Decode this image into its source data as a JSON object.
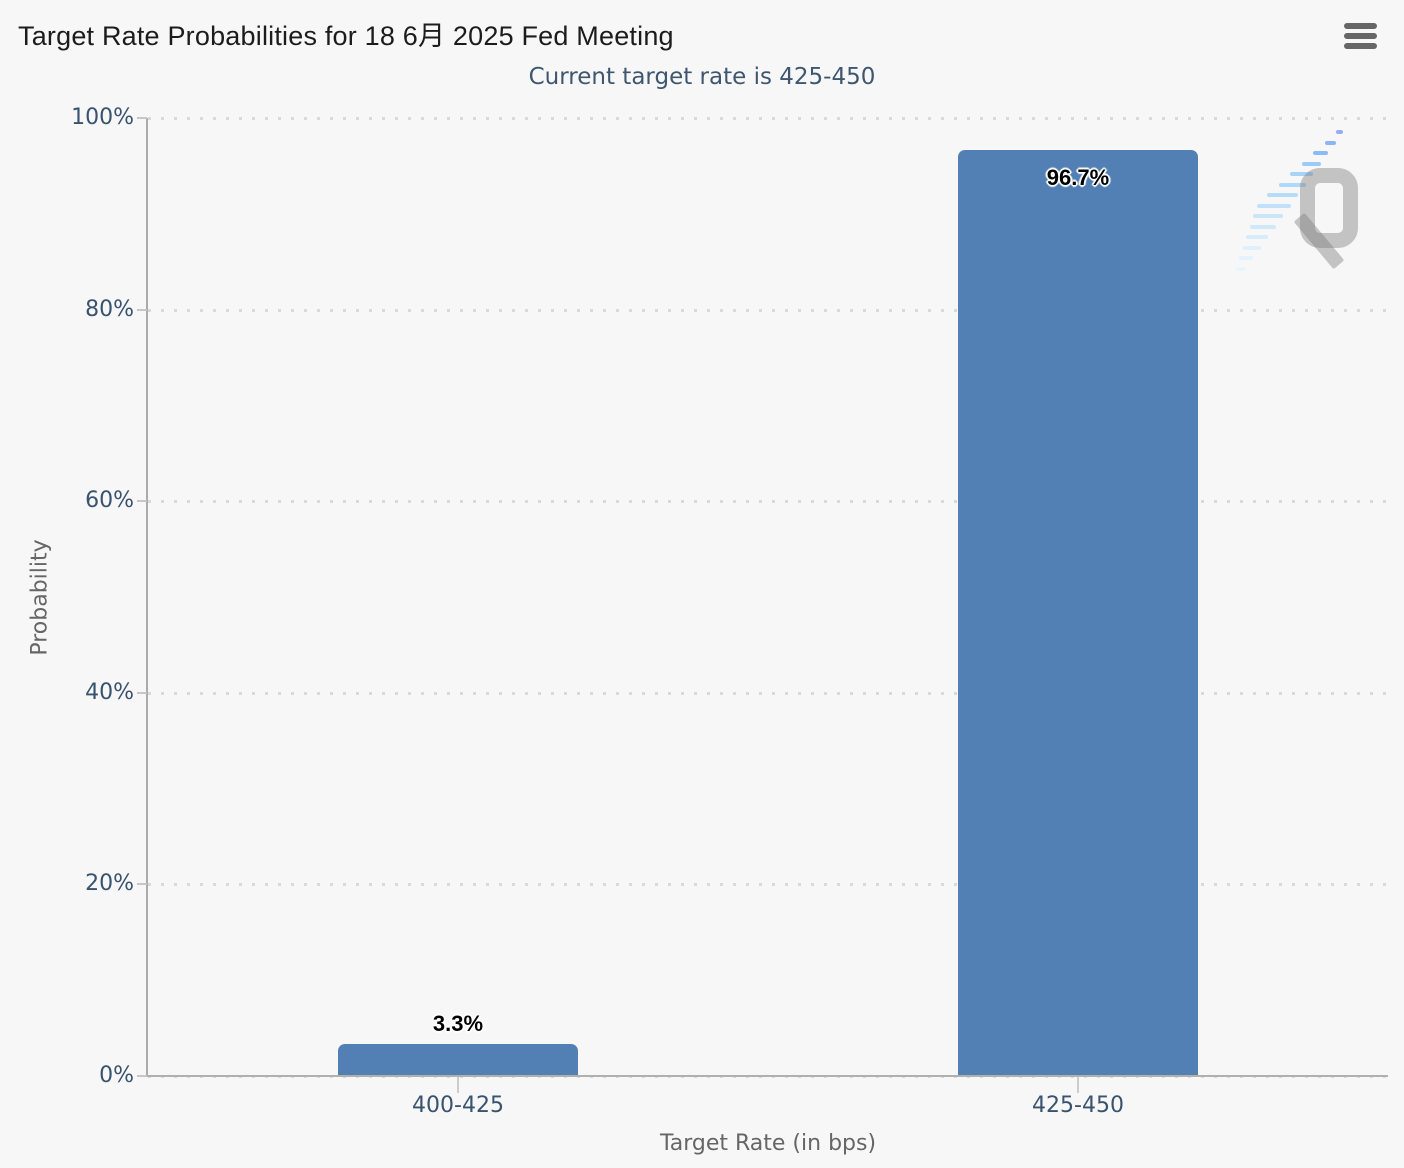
{
  "header": {
    "title": "Target Rate Probabilities for 18 6月 2025 Fed Meeting",
    "subtitle": "Current target rate is 425-450",
    "menu_icon": "hamburger-menu-icon"
  },
  "watermark": {
    "letter": "Q"
  },
  "chart_data": {
    "type": "bar",
    "title": "Target Rate Probabilities for 18 6月 2025 Fed Meeting",
    "subtitle": "Current target rate is 425-450",
    "xlabel": "Target Rate (in bps)",
    "ylabel": "Probability",
    "categories": [
      "400-425",
      "425-450"
    ],
    "values": [
      3.3,
      96.7
    ],
    "value_labels": [
      "3.3%",
      "96.7%"
    ],
    "ylim": [
      0,
      100
    ],
    "ytick_step": 20,
    "ytick_labels": [
      "0%",
      "20%",
      "40%",
      "60%",
      "80%",
      "100%"
    ],
    "grid": "horizontal-dotted",
    "legend": "none",
    "colors": {
      "bar": "#5280b4",
      "title": "#1c1c1c",
      "subtitle": "#3e576f",
      "axis_label": "#39536e",
      "axis_title": "#666666",
      "gridline": "#d9d9d9",
      "axis_line": "#b0b0b0",
      "background": "#f7f7f7"
    }
  }
}
